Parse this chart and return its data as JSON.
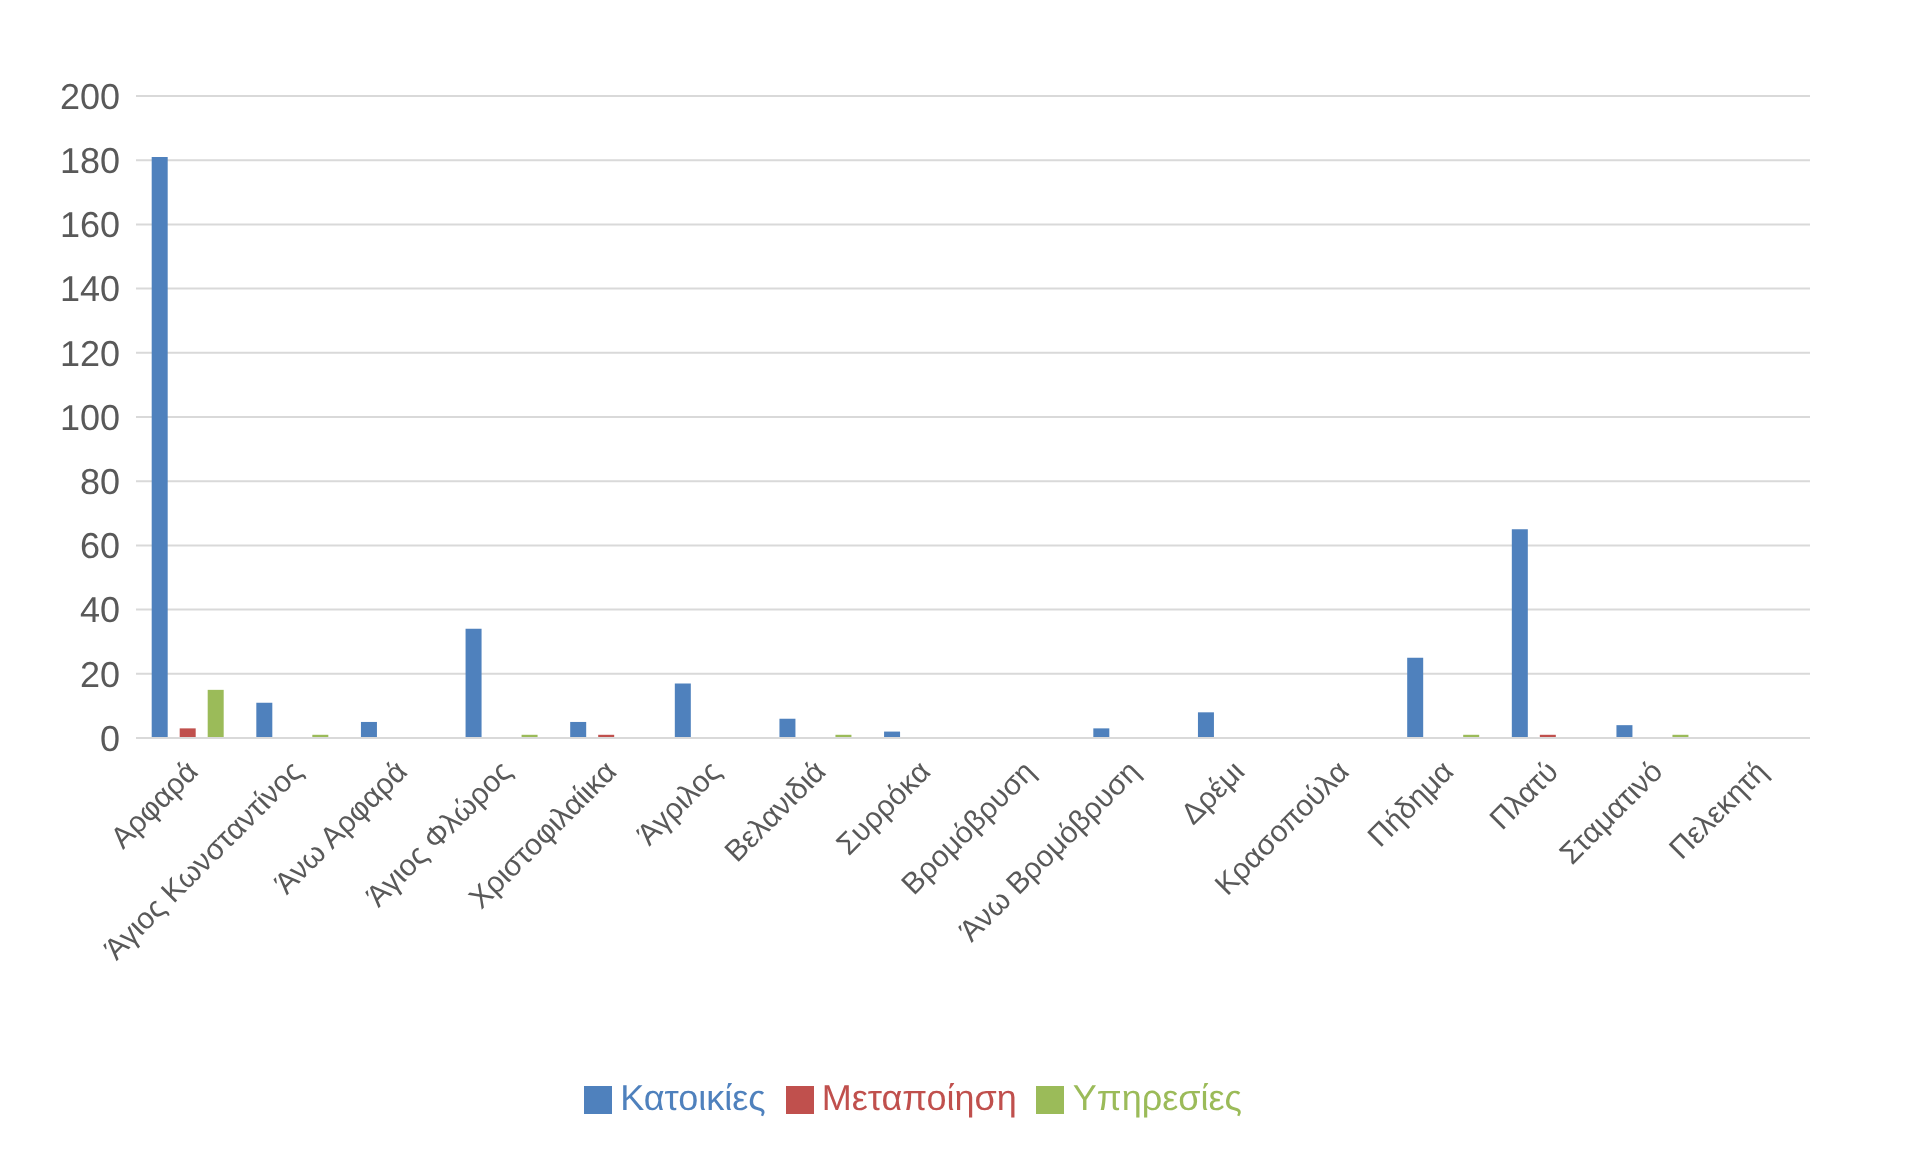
{
  "chart_data": {
    "type": "bar",
    "categories": [
      "Αρφαρά",
      "Άγιος Κωνσταντίνος",
      "Άνω Αρφαρά",
      "Άγιος Φλώρος",
      "Χριστοφιλαίικα",
      "Άγριλος",
      "Βελανιδιά",
      "Συρρόκα",
      "Βρομόβρυση",
      "Άνω Βρομόβρυση",
      "Δρέμι",
      "Κρασοπούλα",
      "Πήδημα",
      "Πλατύ",
      "Σταματινό",
      "Πελεκητή"
    ],
    "series": [
      {
        "name": "Κατοικίες",
        "color": "#4f81bd",
        "values": [
          181,
          11,
          5,
          34,
          5,
          17,
          6,
          2,
          null,
          3,
          8,
          null,
          25,
          65,
          4,
          null
        ]
      },
      {
        "name": "Μεταποίηση",
        "color": "#c0504d",
        "values": [
          3,
          null,
          null,
          null,
          1,
          null,
          null,
          null,
          null,
          null,
          null,
          null,
          null,
          1,
          null,
          null
        ]
      },
      {
        "name": "Υπηρεσίες",
        "color": "#9bbb59",
        "values": [
          15,
          1,
          null,
          1,
          null,
          null,
          1,
          null,
          null,
          null,
          null,
          null,
          1,
          null,
          1,
          null
        ]
      }
    ],
    "ylim": [
      0,
      200
    ],
    "yticks": [
      0,
      20,
      40,
      60,
      80,
      100,
      120,
      140,
      160,
      180,
      200
    ],
    "grid": "y",
    "legend": "bottom"
  }
}
